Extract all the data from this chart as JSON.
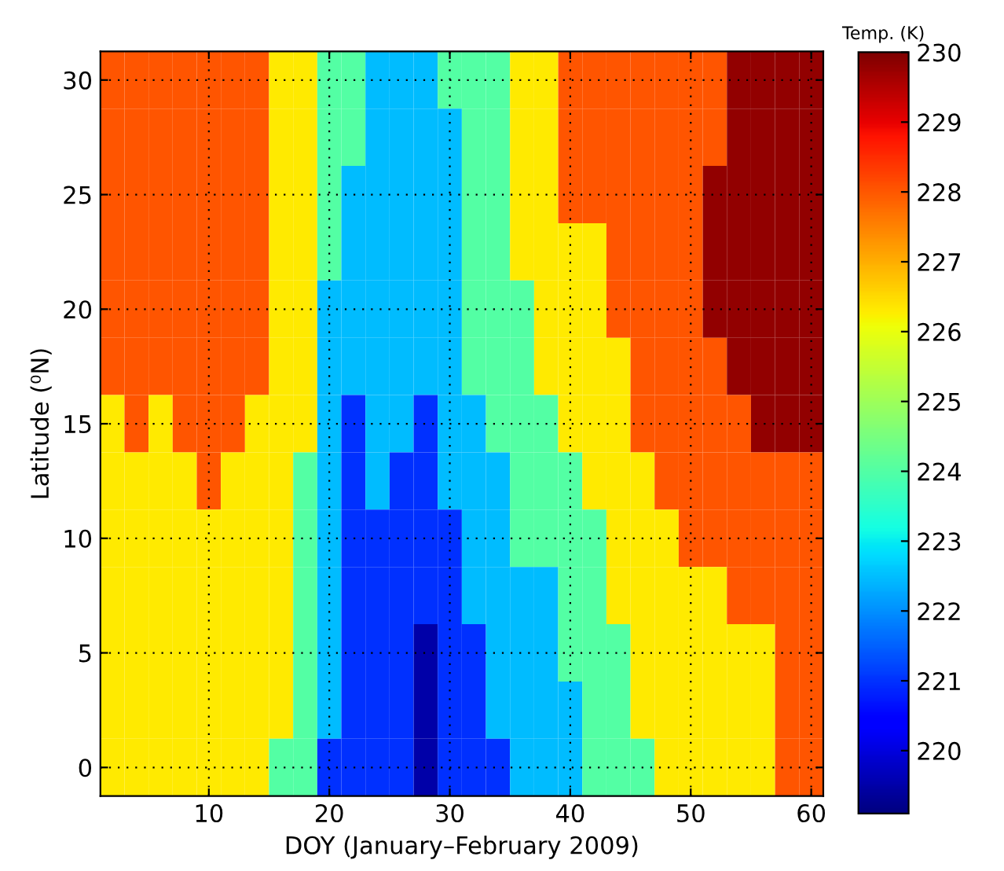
{
  "chart_data": {
    "type": "heatmap",
    "xlabel": "DOY (January–February 2009)",
    "ylabel": "Latitude (⁰N)",
    "clabel": "Temp. (K)",
    "categories": [
      null,
      null,
      null,
      null,
      "10",
      null,
      null,
      null,
      null,
      "20",
      null,
      null,
      null,
      null,
      "30",
      null,
      null,
      null,
      null,
      "40",
      null,
      null,
      null,
      null,
      "50",
      null,
      null,
      null,
      null,
      "60"
    ],
    "y_categories": [
      "30",
      null,
      "25",
      null,
      "20",
      null,
      "15",
      null,
      "10",
      null,
      "5",
      null,
      "0"
    ],
    "cells": [
      [
        228,
        228,
        228,
        228,
        228,
        228,
        228,
        226.3,
        226.3,
        224,
        224,
        222.5,
        222.5,
        222.5,
        224,
        224,
        224,
        226.3,
        226.3,
        228,
        228,
        228,
        228,
        228,
        228,
        228,
        229.8,
        229.8,
        229.8,
        229.8
      ],
      [
        228,
        228,
        228,
        228,
        228,
        228,
        228,
        226.3,
        226.3,
        224,
        224,
        222.5,
        222.5,
        222.5,
        222.5,
        224,
        224,
        226.3,
        226.3,
        228,
        228,
        228,
        228,
        228,
        228,
        228,
        229.8,
        229.8,
        229.8,
        229.8
      ],
      [
        228,
        228,
        228,
        228,
        228,
        228,
        228,
        226.3,
        226.3,
        224,
        222.5,
        222.5,
        222.5,
        222.5,
        222.5,
        224,
        224,
        226.3,
        226.3,
        228,
        228,
        228,
        228,
        228,
        228,
        229.8,
        229.8,
        229.8,
        229.8,
        229.8
      ],
      [
        228,
        228,
        228,
        228,
        228,
        228,
        228,
        226.3,
        226.3,
        224,
        222.5,
        222.5,
        222.5,
        222.5,
        222.5,
        224,
        224,
        226.3,
        226.3,
        226.3,
        226.3,
        228,
        228,
        228,
        228,
        229.8,
        229.8,
        229.8,
        229.8,
        229.8
      ],
      [
        228,
        228,
        228,
        228,
        228,
        228,
        228,
        226.3,
        226.3,
        222.5,
        222.5,
        222.5,
        222.5,
        222.5,
        222.5,
        224,
        224,
        224,
        226.3,
        226.3,
        226.3,
        228,
        228,
        228,
        228,
        229.8,
        229.8,
        229.8,
        229.8,
        229.8
      ],
      [
        228,
        228,
        228,
        228,
        228,
        228,
        228,
        226.3,
        226.3,
        222.5,
        222.5,
        222.5,
        222.5,
        222.5,
        222.5,
        224,
        224,
        224,
        226.3,
        226.3,
        226.3,
        226.3,
        228,
        228,
        228,
        228,
        229.8,
        229.8,
        229.8,
        229.8
      ],
      [
        226.3,
        228,
        226.3,
        228,
        228,
        228,
        226.3,
        226.3,
        226.3,
        222.5,
        221,
        222.5,
        222.5,
        221,
        222.5,
        222.5,
        224,
        224,
        224,
        226.3,
        226.3,
        226.3,
        228,
        228,
        228,
        228,
        228,
        229.8,
        229.8,
        229.8
      ],
      [
        226.3,
        226.3,
        226.3,
        226.3,
        228,
        226.3,
        226.3,
        226.3,
        224,
        222.5,
        221,
        222.5,
        221,
        221,
        222.5,
        222.5,
        222.5,
        224,
        224,
        224,
        226.3,
        226.3,
        226.3,
        228,
        228,
        228,
        228,
        228,
        228,
        228
      ],
      [
        226.3,
        226.3,
        226.3,
        226.3,
        226.3,
        226.3,
        226.3,
        226.3,
        224,
        222.5,
        221,
        221,
        221,
        221,
        221,
        222.5,
        222.5,
        224,
        224,
        224,
        224,
        226.3,
        226.3,
        226.3,
        228,
        228,
        228,
        228,
        228,
        228
      ],
      [
        226.3,
        226.3,
        226.3,
        226.3,
        226.3,
        226.3,
        226.3,
        226.3,
        224,
        222.5,
        221,
        221,
        221,
        221,
        221,
        222.5,
        222.5,
        222.5,
        222.5,
        224,
        224,
        226.3,
        226.3,
        226.3,
        226.3,
        226.3,
        228,
        228,
        228,
        228
      ],
      [
        226.3,
        226.3,
        226.3,
        226.3,
        226.3,
        226.3,
        226.3,
        226.3,
        224,
        222.5,
        221,
        221,
        221,
        219.5,
        221,
        221,
        222.5,
        222.5,
        222.5,
        224,
        224,
        224,
        226.3,
        226.3,
        226.3,
        226.3,
        226.3,
        226.3,
        228,
        228
      ],
      [
        226.3,
        226.3,
        226.3,
        226.3,
        226.3,
        226.3,
        226.3,
        226.3,
        224,
        222.5,
        221,
        221,
        221,
        219.5,
        221,
        221,
        222.5,
        222.5,
        222.5,
        222.5,
        224,
        224,
        226.3,
        226.3,
        226.3,
        226.3,
        226.3,
        226.3,
        228,
        228
      ],
      [
        226.3,
        226.3,
        226.3,
        226.3,
        226.3,
        226.3,
        226.3,
        224,
        224,
        221,
        221,
        221,
        221,
        219.5,
        221,
        221,
        221,
        222.5,
        222.5,
        222.5,
        224,
        224,
        224,
        226.3,
        226.3,
        226.3,
        226.3,
        226.3,
        228,
        228
      ]
    ],
    "clim": [
      219.1,
      230
    ],
    "cticks": [
      220,
      221,
      222,
      223,
      224,
      225,
      226,
      227,
      228,
      229,
      230
    ],
    "grid": true
  }
}
